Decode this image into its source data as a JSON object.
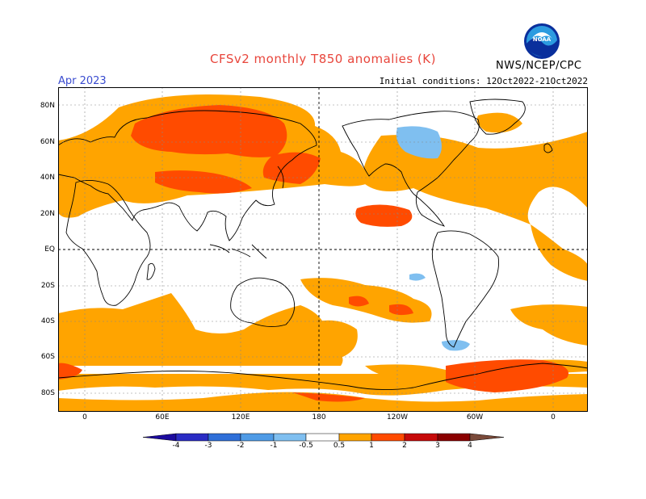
{
  "header": {
    "title": "CFSv2 monthly T850 anomalies (K)",
    "valid_month": "Apr 2023",
    "initial_conditions": "Initial conditions: 12Oct2022-21Oct2022",
    "organization": "NWS/NCEP/CPC",
    "logo_text": "NOAA"
  },
  "axes": {
    "lat_labels": [
      "80N",
      "60N",
      "40N",
      "20N",
      "EQ",
      "20S",
      "40S",
      "60S",
      "80S"
    ],
    "lon_labels": [
      "0",
      "60E",
      "120E",
      "180",
      "120W",
      "60W",
      "0"
    ]
  },
  "colorbar": {
    "tick_labels": [
      "-4",
      "-3",
      "-2",
      "-1",
      "-0.5",
      "0.5",
      "1",
      "2",
      "3",
      "4"
    ],
    "colors": [
      "#1c0b9e",
      "#2a2cc4",
      "#2f6fd8",
      "#4f9be6",
      "#7fbff0",
      "#ffffff",
      "#ffa400",
      "#ff4b00",
      "#c60a0a",
      "#8a0000",
      "#c79f8c",
      "#7a4a3a"
    ]
  },
  "legend_colors": {
    "warm_05_1": "#ffa400",
    "warm_1_2": "#ff4b00",
    "cold_1_05": "#7fbff0"
  }
}
